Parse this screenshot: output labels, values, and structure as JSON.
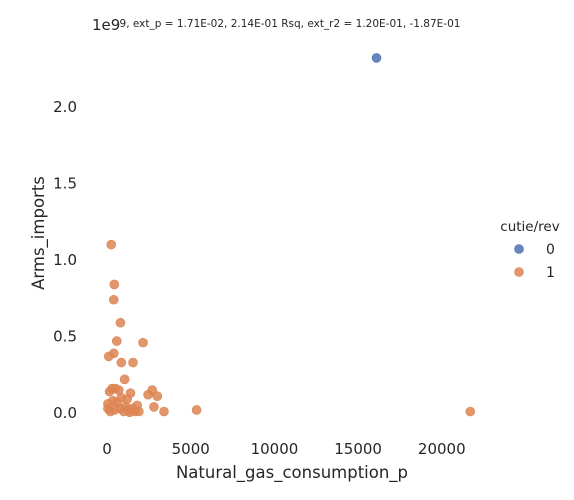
{
  "chart_data": {
    "type": "scatter",
    "title": "9, ext_p = 1.71E-02, 2.14E-01 Rsq, ext_r2 = 1.20E-01, -1.87E-01",
    "xlabel": "Natural_gas_consumption_p",
    "ylabel": "Arms_imports",
    "y_offset_text": "1e9",
    "xlim": [
      -900,
      23000
    ],
    "ylim": [
      -0.15,
      2.45
    ],
    "x_ticks": [
      0,
      5000,
      10000,
      15000,
      20000
    ],
    "x_tick_labels": [
      "0",
      "5000",
      "10000",
      "15000",
      "20000"
    ],
    "y_ticks": [
      0.0,
      0.5,
      1.0,
      1.5,
      2.0
    ],
    "y_tick_labels": [
      "0.0",
      "0.5",
      "1.0",
      "1.5",
      "2.0"
    ],
    "grid": false,
    "legend": {
      "title": "cutie/rev",
      "placement": "right",
      "entries": [
        "0",
        "1"
      ]
    },
    "series": [
      {
        "name": "0",
        "color": "#4c72b0",
        "points": [
          [
            16100,
            2.32
          ]
        ]
      },
      {
        "name": "1",
        "color": "#dd8452",
        "points": [
          [
            250,
            1.1
          ],
          [
            430,
            0.84
          ],
          [
            400,
            0.74
          ],
          [
            800,
            0.59
          ],
          [
            580,
            0.47
          ],
          [
            2150,
            0.46
          ],
          [
            400,
            0.39
          ],
          [
            100,
            0.37
          ],
          [
            850,
            0.33
          ],
          [
            1550,
            0.33
          ],
          [
            1050,
            0.22
          ],
          [
            300,
            0.16
          ],
          [
            500,
            0.16
          ],
          [
            700,
            0.15
          ],
          [
            150,
            0.14
          ],
          [
            2700,
            0.15
          ],
          [
            1400,
            0.13
          ],
          [
            2450,
            0.12
          ],
          [
            3000,
            0.11
          ],
          [
            850,
            0.1
          ],
          [
            1200,
            0.09
          ],
          [
            350,
            0.08
          ],
          [
            600,
            0.07
          ],
          [
            50,
            0.06
          ],
          [
            1800,
            0.05
          ],
          [
            1100,
            0.04
          ],
          [
            2800,
            0.04
          ],
          [
            1500,
            0.03
          ],
          [
            750,
            0.03
          ],
          [
            450,
            0.02
          ],
          [
            1250,
            0.02
          ],
          [
            50,
            0.03
          ],
          [
            200,
            0.01
          ],
          [
            1000,
            0.01
          ],
          [
            1650,
            0.01
          ],
          [
            3400,
            0.01
          ],
          [
            1900,
            0.01
          ],
          [
            5350,
            0.02
          ],
          [
            21700,
            0.01
          ],
          [
            1350,
            0.005
          ]
        ]
      }
    ]
  }
}
